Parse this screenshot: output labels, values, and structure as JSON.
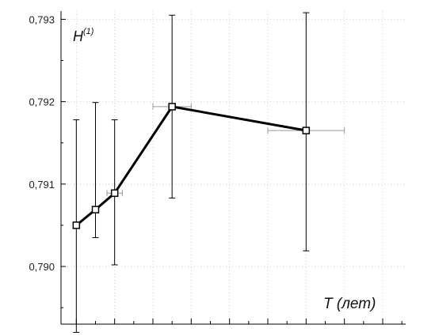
{
  "chart_data": {
    "type": "line",
    "title": "",
    "ylabel": "H",
    "ylabel_sup": "(1)",
    "xlabel": "T (лет)",
    "ylim": [
      0.7893,
      0.7931
    ],
    "xlim": [
      -20,
      430
    ],
    "y_ticks": [
      0.79,
      0.791,
      0.792,
      0.793
    ],
    "y_tick_labels": [
      "0,790",
      "0,791",
      "0,792",
      "0,793"
    ],
    "x_tick_labels_visible": false,
    "grid": true,
    "series": [
      {
        "points": [
          {
            "x": 0,
            "y": 0.7905,
            "y_err_low": 0.7892,
            "y_err_high": 0.79178,
            "x_err": 0
          },
          {
            "x": 25,
            "y": 0.79069,
            "y_err_low": 0.79035,
            "y_err_high": 0.79199,
            "x_err": 0
          },
          {
            "x": 50,
            "y": 0.79089,
            "y_err_low": 0.79002,
            "y_err_high": 0.79178,
            "x_err": 10
          },
          {
            "x": 125,
            "y": 0.79194,
            "y_err_low": 0.79083,
            "y_err_high": 0.79305,
            "x_err": 25
          },
          {
            "x": 300,
            "y": 0.79165,
            "y_err_low": 0.79019,
            "y_err_high": 0.79308,
            "x_err": 50
          }
        ]
      }
    ]
  }
}
